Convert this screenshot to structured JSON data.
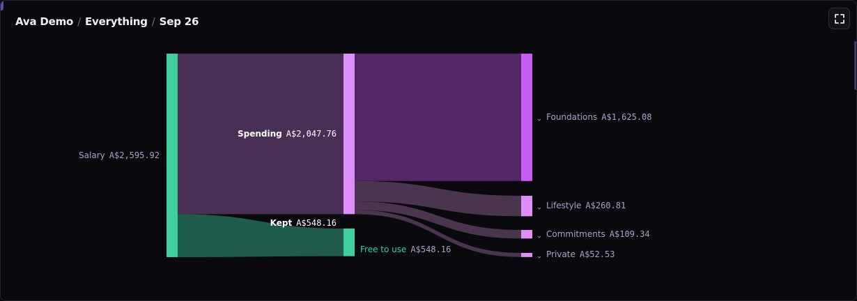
{
  "header": {
    "crumbs": [
      "Ava Demo",
      "Everything",
      "Sep 26"
    ],
    "separator": "/"
  },
  "toolbar": {
    "expand_icon": "fullscreen-icon"
  },
  "colors": {
    "salary": "#3ecf9e",
    "spending_node": "#dd8ef9",
    "foundations_node": "#c65cf2",
    "small_node": "#dd8ef9",
    "free_node": "#3ecf9e",
    "salary_to_spending": "#4a2f55",
    "salary_to_kept": "#205c4c",
    "spend_to_foundations": "#542666",
    "spend_to_other": "#4a344f",
    "label_muted": "#a8a4c8",
    "label_white": "#ffffff",
    "label_green": "#3ecf9e",
    "chevron": "#8a86a4"
  },
  "chart_data": {
    "type": "sankey",
    "nodes": [
      {
        "id": "salary",
        "name": "Salary",
        "value": 2595.92,
        "value_label": "A$2,595.92"
      },
      {
        "id": "spending",
        "name": "Spending",
        "value": 2047.76,
        "value_label": "A$2,047.76"
      },
      {
        "id": "kept",
        "name": "Kept",
        "value": 548.16,
        "value_label": "A$548.16"
      },
      {
        "id": "free",
        "name": "Free to use",
        "value": 548.16,
        "value_label": "A$548.16"
      },
      {
        "id": "foundations",
        "name": "Foundations",
        "value": 1625.08,
        "value_label": "A$1,625.08"
      },
      {
        "id": "lifestyle",
        "name": "Lifestyle",
        "value": 260.81,
        "value_label": "A$260.81"
      },
      {
        "id": "commitments",
        "name": "Commitments",
        "value": 109.34,
        "value_label": "A$109.34"
      },
      {
        "id": "private",
        "name": "Private",
        "value": 52.53,
        "value_label": "A$52.53"
      }
    ],
    "links": [
      {
        "source": "salary",
        "target": "spending",
        "value": 2047.76
      },
      {
        "source": "salary",
        "target": "free",
        "value": 548.16
      },
      {
        "source": "spending",
        "target": "foundations",
        "value": 1625.08
      },
      {
        "source": "spending",
        "target": "lifestyle",
        "value": 260.81
      },
      {
        "source": "spending",
        "target": "commitments",
        "value": 109.34
      },
      {
        "source": "spending",
        "target": "private",
        "value": 52.53
      }
    ]
  }
}
